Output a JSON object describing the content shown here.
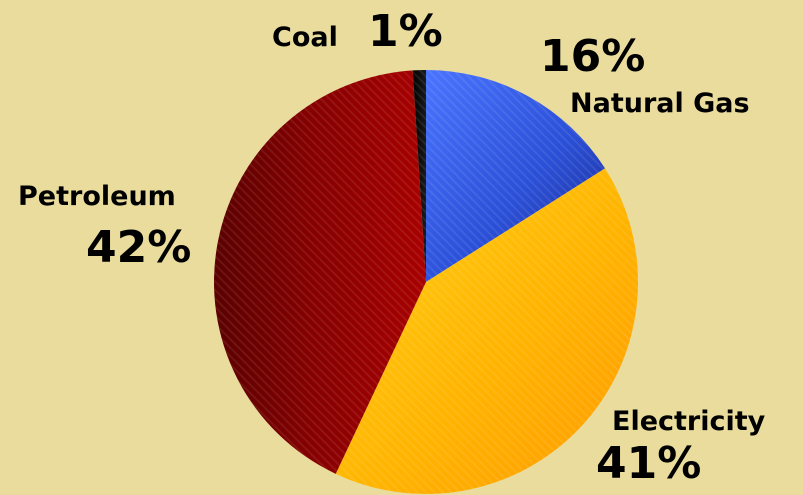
{
  "chart_data": {
    "type": "pie",
    "title": "",
    "slices": [
      {
        "label": "Natural Gas",
        "pct_label": "16%",
        "value": 16,
        "color": "#2b50d8"
      },
      {
        "label": "Electricity",
        "pct_label": "41%",
        "value": 41,
        "color": "#ffb000"
      },
      {
        "label": "Petroleum",
        "pct_label": "42%",
        "value": 42,
        "color": "#9e0000"
      },
      {
        "label": "Coal",
        "pct_label": "1%",
        "value": 1,
        "color": "#050505"
      }
    ],
    "legend": "none",
    "background_color": "#e9dc9c"
  }
}
